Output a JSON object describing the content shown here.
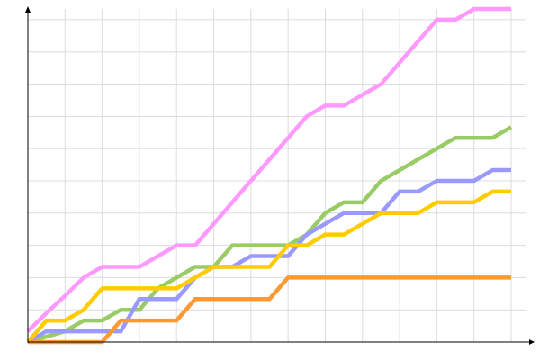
{
  "chart_data": {
    "type": "line",
    "title": "",
    "xlabel": "",
    "ylabel": "",
    "x": [
      0,
      1,
      2,
      3,
      4,
      5,
      6,
      7,
      8,
      9,
      10,
      11,
      12,
      13,
      14,
      15,
      16,
      17,
      18,
      19,
      20,
      21,
      22,
      23,
      24,
      25,
      26
    ],
    "xlim": [
      0,
      26
    ],
    "ylim": [
      0,
      31
    ],
    "grid": true,
    "x_grid_step": 2,
    "y_grid_step": 3,
    "legend": "none",
    "series": [
      {
        "color": "#ff99ff",
        "values": [
          1,
          2.7,
          4.3,
          6,
          7,
          7,
          7,
          8,
          9,
          9,
          11,
          13,
          15,
          17,
          19,
          21,
          22,
          22,
          23,
          24,
          26,
          28,
          30,
          30,
          31,
          31,
          31
        ]
      },
      {
        "color": "#99cc66",
        "values": [
          0,
          0.5,
          1,
          2,
          2,
          3,
          3,
          5,
          6,
          7,
          7,
          9,
          9,
          9,
          9,
          10,
          12,
          13,
          13,
          15,
          16,
          17,
          18,
          19,
          19,
          19,
          20
        ]
      },
      {
        "color": "#9999ff",
        "values": [
          0,
          1,
          1,
          1,
          1,
          1,
          4,
          4,
          4,
          6,
          7,
          7,
          8,
          8,
          8,
          10,
          11,
          12,
          12,
          12,
          14,
          14,
          15,
          15,
          15,
          16,
          16
        ]
      },
      {
        "color": "#ffcc00",
        "values": [
          0,
          2,
          2,
          3,
          5,
          5,
          5,
          5,
          5,
          6,
          7,
          7,
          7,
          7,
          9,
          9,
          10,
          10,
          11,
          12,
          12,
          12,
          13,
          13,
          13,
          14,
          14
        ]
      },
      {
        "color": "#ff9933",
        "values": [
          0,
          0,
          0,
          0,
          0,
          2,
          2,
          2,
          2,
          4,
          4,
          4,
          4,
          4,
          6,
          6,
          6,
          6,
          6,
          6,
          6,
          6,
          6,
          6,
          6,
          6,
          6
        ]
      }
    ]
  }
}
